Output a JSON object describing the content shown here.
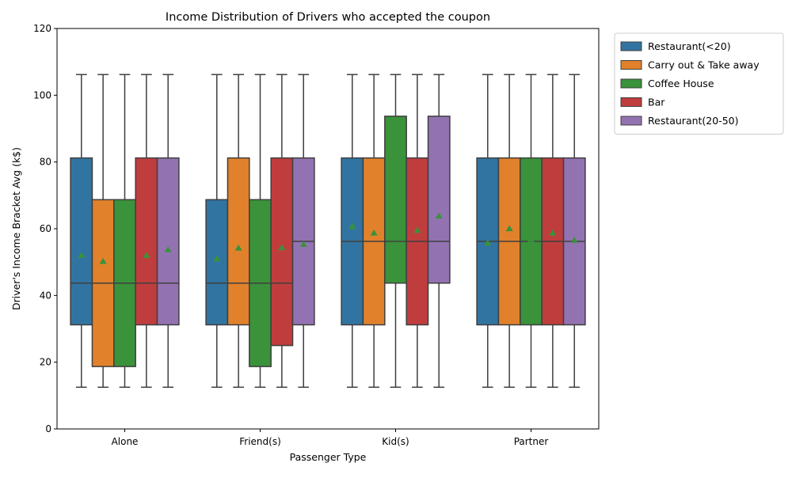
{
  "chart_data": {
    "type": "box",
    "title": "Income Distribution of Drivers who accepted the coupon",
    "xlabel": "Passenger Type",
    "ylabel": "Driver's Income Bracket Avg (k$)",
    "ylim": [
      0,
      120
    ],
    "yticks": [
      0,
      20,
      40,
      60,
      80,
      100,
      120
    ],
    "categories": [
      "Alone",
      "Friend(s)",
      "Kid(s)",
      "Partner"
    ],
    "legend_position": "outside-top-right",
    "series": [
      {
        "name": "Restaurant(<20)",
        "color": "#3274a1",
        "boxes": [
          {
            "whisker_low": 12.5,
            "q1": 31.2,
            "median": 43.7,
            "q3": 81.2,
            "whisker_high": 106.2,
            "mean": 52.0
          },
          {
            "whisker_low": 12.5,
            "q1": 31.2,
            "median": 43.7,
            "q3": 68.7,
            "whisker_high": 106.2,
            "mean": 51.0
          },
          {
            "whisker_low": 12.5,
            "q1": 31.2,
            "median": 56.2,
            "q3": 81.2,
            "whisker_high": 106.2,
            "mean": 60.7
          },
          {
            "whisker_low": 12.5,
            "q1": 31.2,
            "median": 56.2,
            "q3": 81.2,
            "whisker_high": 106.2,
            "mean": 55.7
          }
        ]
      },
      {
        "name": "Carry out & Take away",
        "color": "#e1812c",
        "boxes": [
          {
            "whisker_low": 12.5,
            "q1": 18.7,
            "median": 43.7,
            "q3": 68.7,
            "whisker_high": 106.2,
            "mean": 50.2
          },
          {
            "whisker_low": 12.5,
            "q1": 31.2,
            "median": 43.7,
            "q3": 81.2,
            "whisker_high": 106.2,
            "mean": 54.2
          },
          {
            "whisker_low": 12.5,
            "q1": 31.2,
            "median": 56.2,
            "q3": 81.2,
            "whisker_high": 106.2,
            "mean": 58.7
          },
          {
            "whisker_low": 12.5,
            "q1": 31.2,
            "median": 56.2,
            "q3": 81.2,
            "whisker_high": 106.2,
            "mean": 60.0
          }
        ]
      },
      {
        "name": "Coffee House",
        "color": "#3a923a",
        "boxes": [
          {
            "whisker_low": 12.5,
            "q1": 18.7,
            "median": 43.7,
            "q3": 68.7,
            "whisker_high": 106.2,
            "mean": 50.8
          },
          {
            "whisker_low": 12.5,
            "q1": 18.7,
            "median": 43.7,
            "q3": 68.7,
            "whisker_high": 106.2,
            "mean": 50.3
          },
          {
            "whisker_low": 12.5,
            "q1": 43.7,
            "median": 56.2,
            "q3": 93.7,
            "whisker_high": 106.2,
            "mean": 60.5
          },
          {
            "whisker_low": 12.5,
            "q1": 31.2,
            "median": 56.2,
            "q3": 81.2,
            "whisker_high": 106.2,
            "mean": 56.8
          }
        ]
      },
      {
        "name": "Bar",
        "color": "#c03d3e",
        "boxes": [
          {
            "whisker_low": 12.5,
            "q1": 31.2,
            "median": 43.7,
            "q3": 81.2,
            "whisker_high": 106.2,
            "mean": 52.0
          },
          {
            "whisker_low": 12.5,
            "q1": 25.0,
            "median": 43.7,
            "q3": 81.2,
            "whisker_high": 106.2,
            "mean": 54.3
          },
          {
            "whisker_low": 12.5,
            "q1": 31.2,
            "median": 56.2,
            "q3": 81.2,
            "whisker_high": 106.2,
            "mean": 59.5
          },
          {
            "whisker_low": 12.5,
            "q1": 31.2,
            "median": 56.2,
            "q3": 81.2,
            "whisker_high": 106.2,
            "mean": 58.7
          }
        ]
      },
      {
        "name": "Restaurant(20-50)",
        "color": "#9372b2",
        "boxes": [
          {
            "whisker_low": 12.5,
            "q1": 31.2,
            "median": 43.7,
            "q3": 81.2,
            "whisker_high": 106.2,
            "mean": 53.7
          },
          {
            "whisker_low": 12.5,
            "q1": 31.2,
            "median": 56.2,
            "q3": 81.2,
            "whisker_high": 106.2,
            "mean": 55.3
          },
          {
            "whisker_low": 12.5,
            "q1": 43.7,
            "median": 56.2,
            "q3": 93.7,
            "whisker_high": 106.2,
            "mean": 63.8
          },
          {
            "whisker_low": 12.5,
            "q1": 31.2,
            "median": 56.2,
            "q3": 81.2,
            "whisker_high": 106.2,
            "mean": 56.5
          }
        ]
      }
    ],
    "mean_marker_color": "#3a923a",
    "line_color": "#3f3f3f"
  }
}
